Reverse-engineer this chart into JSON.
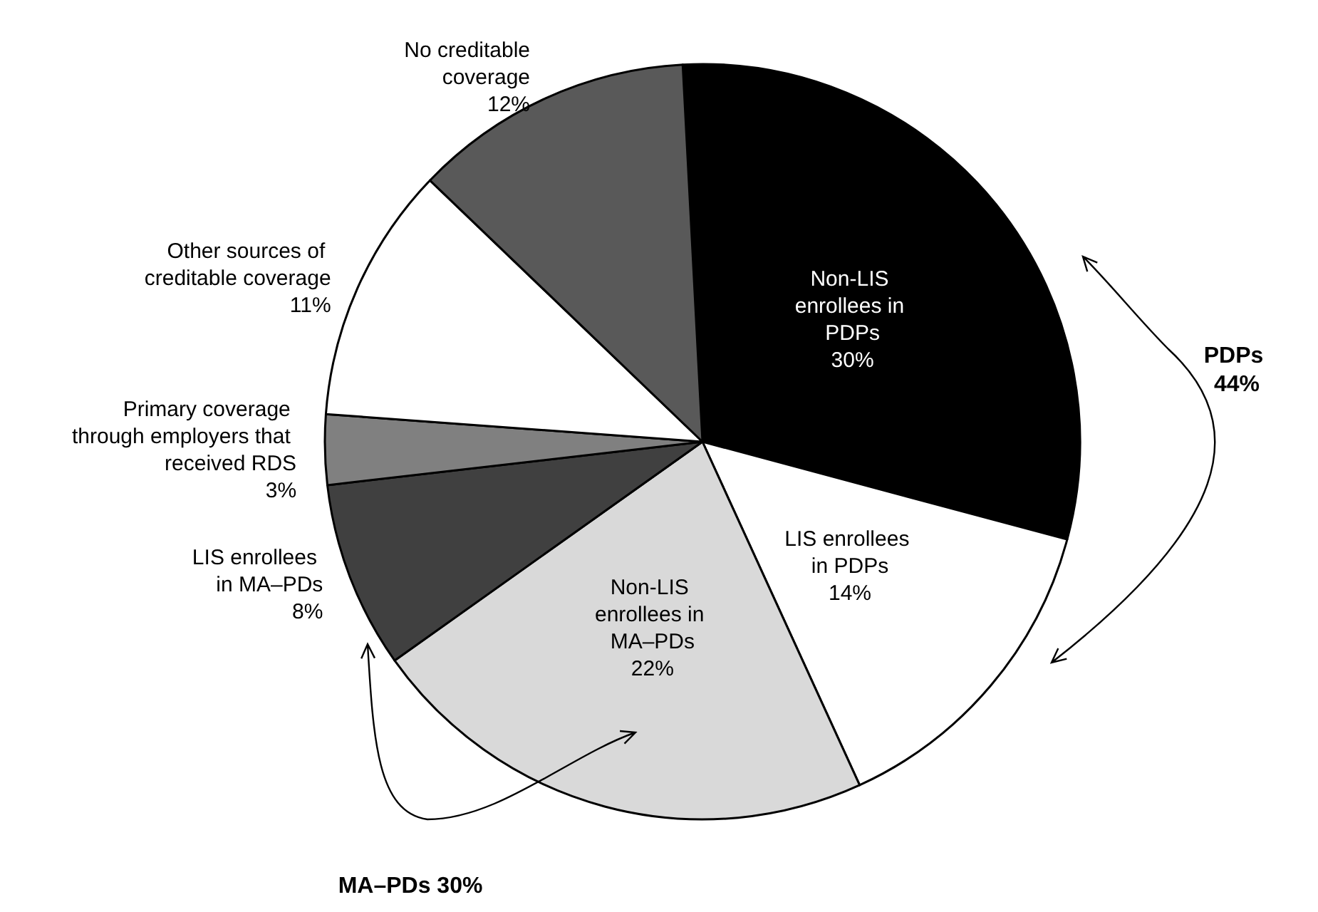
{
  "chart_data": {
    "type": "pie",
    "categories": [
      "Non-LIS enrollees in PDPs",
      "LIS enrollees in PDPs",
      "Non-LIS enrollees in MA–PDs",
      "LIS enrollees in MA–PDs",
      "Primary coverage through employers that received RDS",
      "Other sources of creditable coverage",
      "No creditable coverage"
    ],
    "values": [
      30,
      14,
      22,
      8,
      3,
      11,
      12
    ],
    "value_labels": [
      "30%",
      "14%",
      "22%",
      "8%",
      "3%",
      "11%",
      "12%"
    ],
    "colors": [
      "#000000",
      "#ffffff",
      "#d9d9d9",
      "#404040",
      "#808080",
      "#ffffff",
      "#595959"
    ],
    "annotations": [
      "PDPs 44%",
      "MA–PDs 30%"
    ],
    "legend": false
  }
}
